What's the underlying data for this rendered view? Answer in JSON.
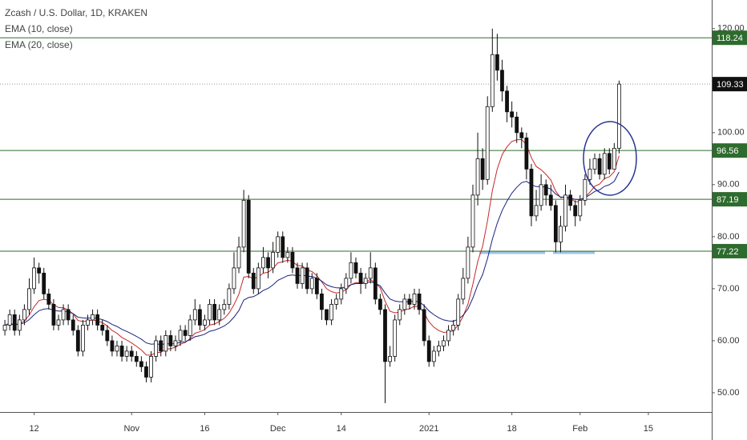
{
  "chart_data": {
    "type": "candlestick",
    "title": "Zcash / U.S. Dollar, 1D, KRAKEN",
    "x": [
      "2020-10-06",
      "2020-10-07",
      "2020-10-08",
      "2020-10-09",
      "2020-10-10",
      "2020-10-11",
      "2020-10-12",
      "2020-10-13",
      "2020-10-14",
      "2020-10-15",
      "2020-10-16",
      "2020-10-17",
      "2020-10-18",
      "2020-10-19",
      "2020-10-20",
      "2020-10-21",
      "2020-10-22",
      "2020-10-23",
      "2020-10-24",
      "2020-10-25",
      "2020-10-26",
      "2020-10-27",
      "2020-10-28",
      "2020-10-29",
      "2020-10-30",
      "2020-10-31",
      "2020-11-01",
      "2020-11-02",
      "2020-11-03",
      "2020-11-04",
      "2020-11-05",
      "2020-11-06",
      "2020-11-07",
      "2020-11-08",
      "2020-11-09",
      "2020-11-10",
      "2020-11-11",
      "2020-11-12",
      "2020-11-13",
      "2020-11-14",
      "2020-11-15",
      "2020-11-16",
      "2020-11-17",
      "2020-11-18",
      "2020-11-19",
      "2020-11-20",
      "2020-11-21",
      "2020-11-22",
      "2020-11-23",
      "2020-11-24",
      "2020-11-25",
      "2020-11-26",
      "2020-11-27",
      "2020-11-28",
      "2020-11-29",
      "2020-11-30",
      "2020-12-01",
      "2020-12-02",
      "2020-12-03",
      "2020-12-04",
      "2020-12-05",
      "2020-12-06",
      "2020-12-07",
      "2020-12-08",
      "2020-12-09",
      "2020-12-10",
      "2020-12-11",
      "2020-12-12",
      "2020-12-13",
      "2020-12-14",
      "2020-12-15",
      "2020-12-16",
      "2020-12-17",
      "2020-12-18",
      "2020-12-19",
      "2020-12-20",
      "2020-12-21",
      "2020-12-22",
      "2020-12-23",
      "2020-12-24",
      "2020-12-25",
      "2020-12-26",
      "2020-12-27",
      "2020-12-28",
      "2020-12-29",
      "2020-12-30",
      "2020-12-31",
      "2021-01-01",
      "2021-01-02",
      "2021-01-03",
      "2021-01-04",
      "2021-01-05",
      "2021-01-06",
      "2021-01-07",
      "2021-01-08",
      "2021-01-09",
      "2021-01-10",
      "2021-01-11",
      "2021-01-12",
      "2021-01-13",
      "2021-01-14",
      "2021-01-15",
      "2021-01-16",
      "2021-01-17",
      "2021-01-18",
      "2021-01-19",
      "2021-01-20",
      "2021-01-21",
      "2021-01-22",
      "2021-01-23",
      "2021-01-24",
      "2021-01-25",
      "2021-01-26",
      "2021-01-27",
      "2021-01-28",
      "2021-01-29",
      "2021-01-30",
      "2021-01-31",
      "2021-02-01",
      "2021-02-02",
      "2021-02-03",
      "2021-02-04",
      "2021-02-05",
      "2021-02-06",
      "2021-02-07",
      "2021-02-08",
      "2021-02-09"
    ],
    "open": [
      62,
      63,
      65,
      62,
      64,
      66,
      70,
      74,
      73,
      69,
      67,
      63,
      64,
      66,
      64,
      62,
      58,
      63,
      64,
      65,
      63,
      62,
      60,
      58,
      59,
      57,
      58,
      57,
      56,
      55,
      53,
      57,
      60,
      58,
      61,
      59,
      60,
      62,
      61,
      64,
      66,
      63,
      64,
      67,
      64,
      66,
      67,
      70,
      74,
      78,
      87,
      73,
      70,
      74,
      76,
      74,
      77,
      80,
      76,
      77,
      74,
      71,
      74,
      70,
      72,
      69,
      66,
      64,
      67,
      68,
      70,
      72,
      75,
      73,
      71,
      72,
      74,
      68,
      66,
      56,
      57,
      64,
      66,
      68,
      67,
      69,
      66,
      60,
      56,
      58,
      59,
      60,
      62,
      63,
      68,
      72,
      78,
      88,
      95,
      91,
      105,
      115,
      112,
      108,
      104,
      103,
      100,
      99,
      93,
      84,
      86,
      90,
      88,
      86,
      79,
      82,
      88,
      86,
      84,
      87,
      91,
      93,
      95,
      92,
      96,
      93,
      97
    ],
    "high": [
      64,
      66,
      66,
      65,
      67,
      72,
      76,
      75,
      74,
      70,
      68,
      65,
      67,
      67,
      65,
      63,
      64,
      65,
      66,
      66,
      64,
      63,
      61,
      60,
      60,
      59,
      59,
      58,
      57,
      56,
      58,
      61,
      61,
      62,
      62,
      61,
      63,
      63,
      65,
      68,
      67,
      65,
      68,
      68,
      67,
      68,
      71,
      77,
      80,
      89,
      88,
      74,
      75,
      78,
      77,
      79,
      81,
      81,
      78,
      78,
      75,
      75,
      75,
      73,
      73,
      70,
      66,
      68,
      69,
      71,
      73,
      77,
      76,
      74,
      73,
      77,
      75,
      69,
      67,
      59,
      65,
      67,
      69,
      69,
      70,
      70,
      67,
      61,
      59,
      60,
      61,
      63,
      64,
      69,
      74,
      80,
      90,
      100,
      97,
      107,
      120,
      119,
      114,
      109,
      106,
      104,
      101,
      100,
      94,
      89,
      92,
      91,
      90,
      87,
      84,
      90,
      89,
      87,
      88,
      92,
      95,
      96,
      96,
      97,
      97,
      98,
      110
    ],
    "low": [
      61,
      62,
      61,
      61,
      63,
      65,
      69,
      71,
      68,
      66,
      62,
      62,
      63,
      63,
      61,
      57,
      57,
      62,
      63,
      62,
      61,
      59,
      57,
      57,
      56,
      56,
      56,
      55,
      54,
      52,
      52,
      56,
      57,
      57,
      58,
      58,
      59,
      60,
      60,
      63,
      62,
      62,
      63,
      63,
      63,
      65,
      66,
      69,
      73,
      77,
      72,
      69,
      69,
      73,
      72,
      73,
      76,
      75,
      75,
      73,
      70,
      70,
      69,
      69,
      68,
      64,
      63,
      63,
      66,
      67,
      69,
      71,
      72,
      69,
      70,
      71,
      67,
      65,
      48,
      55,
      56,
      63,
      65,
      66,
      66,
      65,
      59,
      55,
      55,
      57,
      58,
      59,
      61,
      62,
      67,
      71,
      77,
      86,
      89,
      90,
      104,
      110,
      106,
      102,
      101,
      98,
      97,
      91,
      82,
      83,
      85,
      86,
      85,
      77,
      77,
      81,
      85,
      82,
      83,
      86,
      90,
      92,
      91,
      91,
      92,
      93,
      96
    ],
    "close": [
      63,
      65,
      62,
      64,
      66,
      70,
      74,
      73,
      69,
      67,
      63,
      64,
      66,
      64,
      62,
      58,
      63,
      64,
      65,
      63,
      62,
      60,
      58,
      59,
      57,
      58,
      57,
      56,
      55,
      53,
      57,
      60,
      58,
      61,
      59,
      60,
      62,
      61,
      64,
      66,
      63,
      64,
      67,
      64,
      66,
      67,
      70,
      74,
      78,
      87,
      73,
      70,
      74,
      76,
      74,
      77,
      80,
      76,
      77,
      74,
      71,
      74,
      70,
      72,
      69,
      66,
      64,
      67,
      68,
      70,
      72,
      75,
      73,
      71,
      72,
      74,
      68,
      66,
      56,
      57,
      64,
      66,
      68,
      67,
      69,
      66,
      60,
      56,
      58,
      59,
      60,
      62,
      63,
      68,
      72,
      78,
      88,
      95,
      91,
      105,
      115,
      112,
      108,
      104,
      103,
      100,
      99,
      93,
      84,
      86,
      90,
      88,
      86,
      79,
      82,
      88,
      86,
      84,
      87,
      91,
      93,
      95,
      92,
      96,
      93,
      97,
      109.33
    ],
    "indicators": [
      {
        "name": "EMA (10, close)",
        "color": "#c62828"
      },
      {
        "name": "EMA (20, close)",
        "color": "#1a237e"
      }
    ],
    "levels": [
      118.24,
      96.56,
      87.19,
      77.22
    ],
    "level_color": "#2e6b2e",
    "last_price": 109.33,
    "xlim": [
      "2020-10-05",
      "2021-02-28"
    ],
    "xticks": [
      {
        "value": "2020-10-12",
        "label": "12"
      },
      {
        "value": "2020-11-01",
        "label": "Nov"
      },
      {
        "value": "2020-11-16",
        "label": "16"
      },
      {
        "value": "2020-12-01",
        "label": "Dec"
      },
      {
        "value": "2020-12-14",
        "label": "14"
      },
      {
        "value": "2021-01-01",
        "label": "2021"
      },
      {
        "value": "2021-01-18",
        "label": "18"
      },
      {
        "value": "2021-02-01",
        "label": "Feb"
      },
      {
        "value": "2021-02-15",
        "label": "15"
      }
    ],
    "ylim": [
      46.3,
      125.5
    ],
    "yticks": [
      {
        "value": 50,
        "label": "50.00"
      },
      {
        "value": 60,
        "label": "60.00"
      },
      {
        "value": 70,
        "label": "70.00"
      },
      {
        "value": 80,
        "label": "80.00"
      },
      {
        "value": 90,
        "label": "90.00"
      },
      {
        "value": 100,
        "label": "100.00"
      },
      {
        "value": 120,
        "label": "120.00"
      }
    ]
  }
}
